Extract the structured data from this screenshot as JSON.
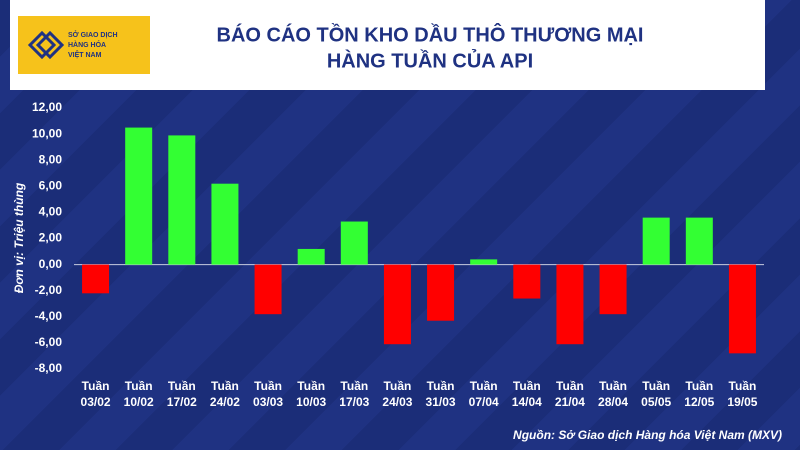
{
  "logo": {
    "lines": [
      "SỞ GIAO DỊCH",
      "HÀNG HÓA",
      "VIỆT NAM"
    ]
  },
  "chart_data": {
    "type": "bar",
    "title": [
      "BÁO CÁO TỒN KHO DẦU THÔ THƯƠNG MẠI",
      "HÀNG TUẦN CỦA API"
    ],
    "y_label": "Đơn vị: Triệu thùng",
    "source": "Nguồn: Sở Giao dịch Hàng hóa Việt Nam (MXV)",
    "categories": [
      "Tuần 03/02",
      "Tuần 10/02",
      "Tuần 17/02",
      "Tuần 24/02",
      "Tuần 03/03",
      "Tuần 10/03",
      "Tuần 17/03",
      "Tuần 24/03",
      "Tuần 31/03",
      "Tuần 07/04",
      "Tuần 14/04",
      "Tuần 21/04",
      "Tuần 28/04",
      "Tuần 05/05",
      "Tuần 12/05",
      "Tuần 19/05"
    ],
    "values": [
      -2.2,
      10.5,
      9.9,
      6.2,
      -3.8,
      1.2,
      3.3,
      -6.1,
      -4.3,
      0.4,
      -2.6,
      -6.1,
      -3.8,
      3.6,
      3.6,
      -6.8
    ],
    "positive_color": "#33ff33",
    "negative_color": "#ff0000",
    "ylim": [
      -8,
      12
    ],
    "yticks": [
      {
        "value": -8,
        "label": "-8,00"
      },
      {
        "value": -6,
        "label": "-6,00"
      },
      {
        "value": -4,
        "label": "-4,00"
      },
      {
        "value": -2,
        "label": "-2,00"
      },
      {
        "value": 0,
        "label": "0,00"
      },
      {
        "value": 2,
        "label": "2,00"
      },
      {
        "value": 4,
        "label": "4,00"
      },
      {
        "value": 6,
        "label": "6,00"
      },
      {
        "value": 8,
        "label": "8,00"
      },
      {
        "value": 10,
        "label": "10,00"
      },
      {
        "value": 12,
        "label": "12,00"
      }
    ],
    "zero_line": true
  }
}
